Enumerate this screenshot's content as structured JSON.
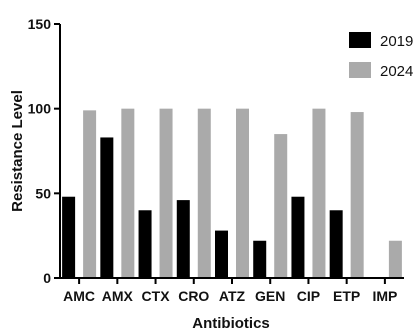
{
  "chart_data": {
    "type": "bar",
    "title": "",
    "xlabel": "Antibiotics",
    "ylabel": "Resistance Level",
    "ylim": [
      0,
      150
    ],
    "yticks": [
      "0",
      "50",
      "100",
      "150"
    ],
    "categories": [
      "AMC",
      "AMX",
      "CTX",
      "CRO",
      "ATZ",
      "GEN",
      "CIP",
      "ETP",
      "IMP"
    ],
    "series": [
      {
        "name": "2019",
        "color": "#000000",
        "values": [
          48,
          83,
          40,
          46,
          28,
          22,
          48,
          40,
          0
        ]
      },
      {
        "name": "2024",
        "color": "#aaaaaa",
        "values": [
          99,
          100,
          100,
          100,
          100,
          85,
          100,
          98,
          22
        ]
      }
    ],
    "grid": false,
    "legend_position": "top-right"
  }
}
